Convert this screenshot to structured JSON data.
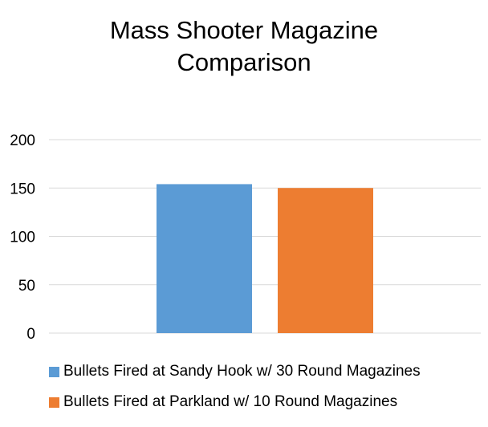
{
  "chart_data": {
    "type": "bar",
    "title": "Mass Shooter Magazine\nComparison",
    "categories": [
      ""
    ],
    "series": [
      {
        "name": "Bullets Fired at Sandy Hook w/ 30 Round Magazines",
        "values": [
          154
        ],
        "color": "#5B9BD5"
      },
      {
        "name": "Bullets Fired at Parkland w/ 10 Round Magazines",
        "values": [
          150
        ],
        "color": "#ED7D31"
      }
    ],
    "xlabel": "",
    "ylabel": "",
    "ylim": [
      0,
      200
    ],
    "yticks": [
      0,
      50,
      100,
      150,
      200
    ],
    "grid": true,
    "legend_position": "bottom"
  }
}
